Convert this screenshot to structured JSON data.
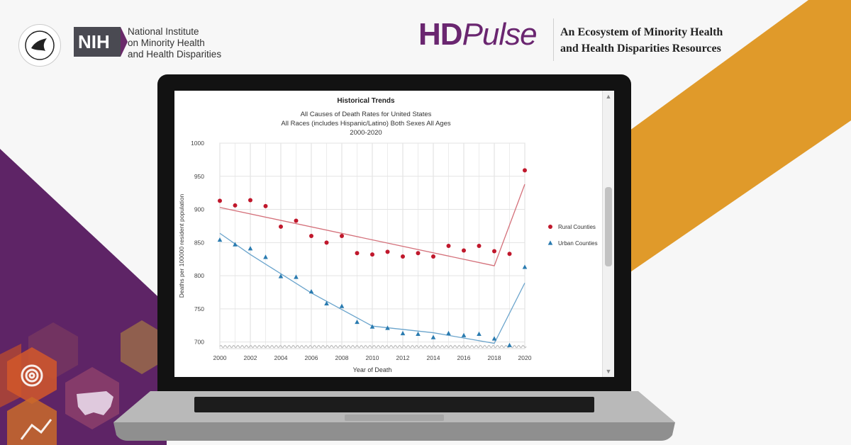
{
  "header": {
    "nih_abbrev": "NIH",
    "nih_lines": [
      "National Institute",
      "on Minority Health",
      "and Health Disparities"
    ],
    "brand_hd": "HD",
    "brand_pulse": "Pulse",
    "tagline_lines": [
      "An Ecosystem of  Minority Health",
      "and Health Disparities Resources"
    ]
  },
  "colors": {
    "brand_purple": "#6a2670",
    "accent_orange": "#e09a2a",
    "rural": "#c0182c",
    "rural_line": "#d4707a",
    "urban": "#2a7bb0",
    "urban_line": "#6aa4cc"
  },
  "chart_data": {
    "type": "scatter",
    "title": "Historical Trends",
    "subtitle_lines": [
      "All Causes of Death Rates for United States",
      "All Races (includes Hispanic/Latino) Both Sexes All Ages",
      "2000-2020"
    ],
    "xlabel": "Year of Death",
    "ylabel": "Deaths per 100000 resident population",
    "xlim": [
      2000,
      2020
    ],
    "ylim": [
      690,
      1000
    ],
    "x_ticks": [
      "2000",
      "2002",
      "2004",
      "2006",
      "2008",
      "2010",
      "2012",
      "2014",
      "2016",
      "2018",
      "2020"
    ],
    "y_ticks": [
      "700",
      "750",
      "800",
      "850",
      "900",
      "950",
      "1000"
    ],
    "legend_position": "right",
    "series": [
      {
        "name": "Rural Counties",
        "marker": "circle",
        "x": [
          2000,
          2001,
          2002,
          2003,
          2004,
          2005,
          2006,
          2007,
          2008,
          2009,
          2010,
          2011,
          2012,
          2013,
          2014,
          2015,
          2016,
          2017,
          2018,
          2019,
          2020
        ],
        "y": [
          913,
          906,
          914,
          905,
          874,
          883,
          860,
          850,
          860,
          834,
          832,
          836,
          829,
          834,
          829,
          845,
          838,
          845,
          837,
          833,
          959
        ],
        "trend_x": [
          2000,
          2018,
          2020
        ],
        "trend_y": [
          903,
          815,
          938
        ]
      },
      {
        "name": "Urban Counties",
        "marker": "triangle",
        "x": [
          2000,
          2001,
          2002,
          2003,
          2004,
          2005,
          2006,
          2007,
          2008,
          2009,
          2010,
          2011,
          2012,
          2013,
          2014,
          2015,
          2016,
          2017,
          2018,
          2019,
          2020
        ],
        "y": [
          854,
          847,
          841,
          828,
          799,
          798,
          776,
          758,
          754,
          730,
          723,
          721,
          713,
          712,
          707,
          713,
          710,
          712,
          705,
          695,
          813
        ],
        "trend_x": [
          2000,
          2002,
          2006,
          2010,
          2014,
          2018,
          2020
        ],
        "trend_y": [
          864,
          832,
          774,
          724,
          714,
          698,
          789
        ]
      }
    ]
  }
}
